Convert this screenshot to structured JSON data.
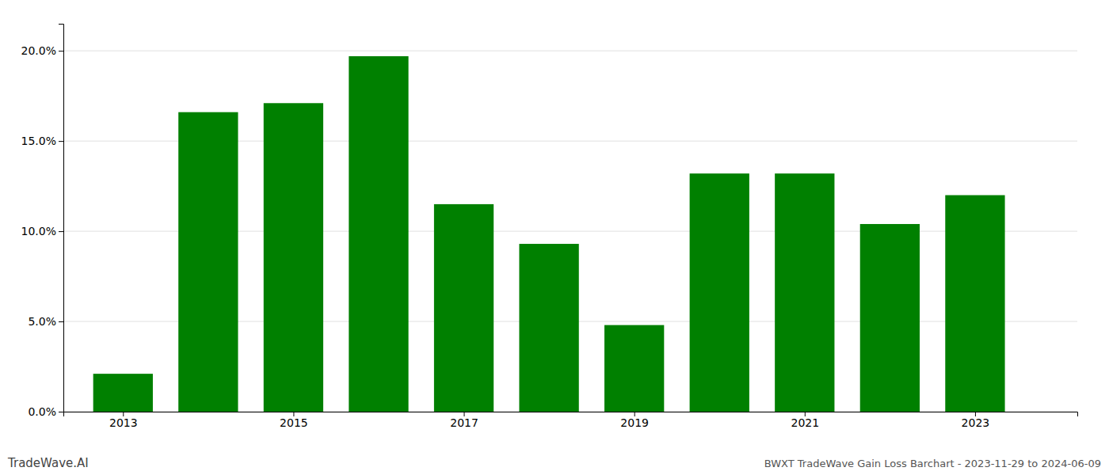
{
  "chart_data": {
    "type": "bar",
    "title": "BWXT TradeWave Gain Loss Barchart - 2023-11-29 to 2024-06-09",
    "annotations": [
      "TradeWave.AI"
    ],
    "x": [
      2013,
      2014,
      2015,
      2016,
      2017,
      2018,
      2019,
      2020,
      2021,
      2022,
      2023
    ],
    "values": [
      0.021,
      0.166,
      0.171,
      0.197,
      0.115,
      0.093,
      0.048,
      0.132,
      0.132,
      0.104,
      0.12
    ],
    "color": "#008000",
    "xlim": [
      2012.3,
      2024.2
    ],
    "xticks": [
      2013,
      2015,
      2017,
      2019,
      2021,
      2023
    ],
    "ylim": [
      0,
      0.215
    ],
    "yticks": [
      {
        "value": 0.0,
        "label": "0.0%"
      },
      {
        "value": 0.05,
        "label": "5.0%"
      },
      {
        "value": 0.1,
        "label": "10.0%"
      },
      {
        "value": 0.15,
        "label": "15.0%"
      },
      {
        "value": 0.2,
        "label": "20.0%"
      }
    ],
    "grid": true
  }
}
